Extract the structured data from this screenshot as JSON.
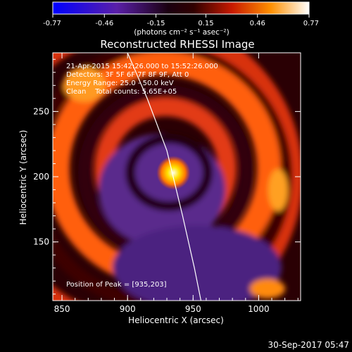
{
  "chart_data": {
    "type": "heatmap",
    "title": "Reconstructed RHESSI Image",
    "xlabel": "Heliocentric X (arcsec)",
    "ylabel": "Heliocentric Y (arcsec)",
    "xlim": [
      843,
      1032
    ],
    "ylim": [
      105,
      295
    ],
    "x_ticks": [
      850,
      900,
      950,
      1000
    ],
    "y_ticks": [
      150,
      200,
      250
    ],
    "colorbar": {
      "ticks": [
        "-0.77",
        "-0.46",
        "-0.15",
        "0.15",
        "0.46",
        "0.77"
      ],
      "range": [
        -0.77,
        0.77
      ],
      "unit_label": "(photons cm⁻² s⁻¹ asec⁻²)"
    },
    "annotations": [
      "21-Apr-2015 15:42:26.000 to 15:52:26.000",
      "Detectors: 3F 5F 6F 7F 8F 9F, Att 0",
      "Energy Range: 25.0 - 50.0 keV",
      "Clean    Total counts: 5.65E+05"
    ],
    "peak_label": "Position of Peak = [935,203]",
    "peak": {
      "x": 935,
      "y": 203,
      "value": 0.77
    },
    "limb_curve": [
      [
        900,
        295
      ],
      [
        915,
        260
      ],
      [
        930,
        220
      ],
      [
        942,
        170
      ],
      [
        951,
        130
      ],
      [
        956,
        105
      ]
    ]
  },
  "footer": {
    "timestamp": "30-Sep-2017 05:47"
  }
}
